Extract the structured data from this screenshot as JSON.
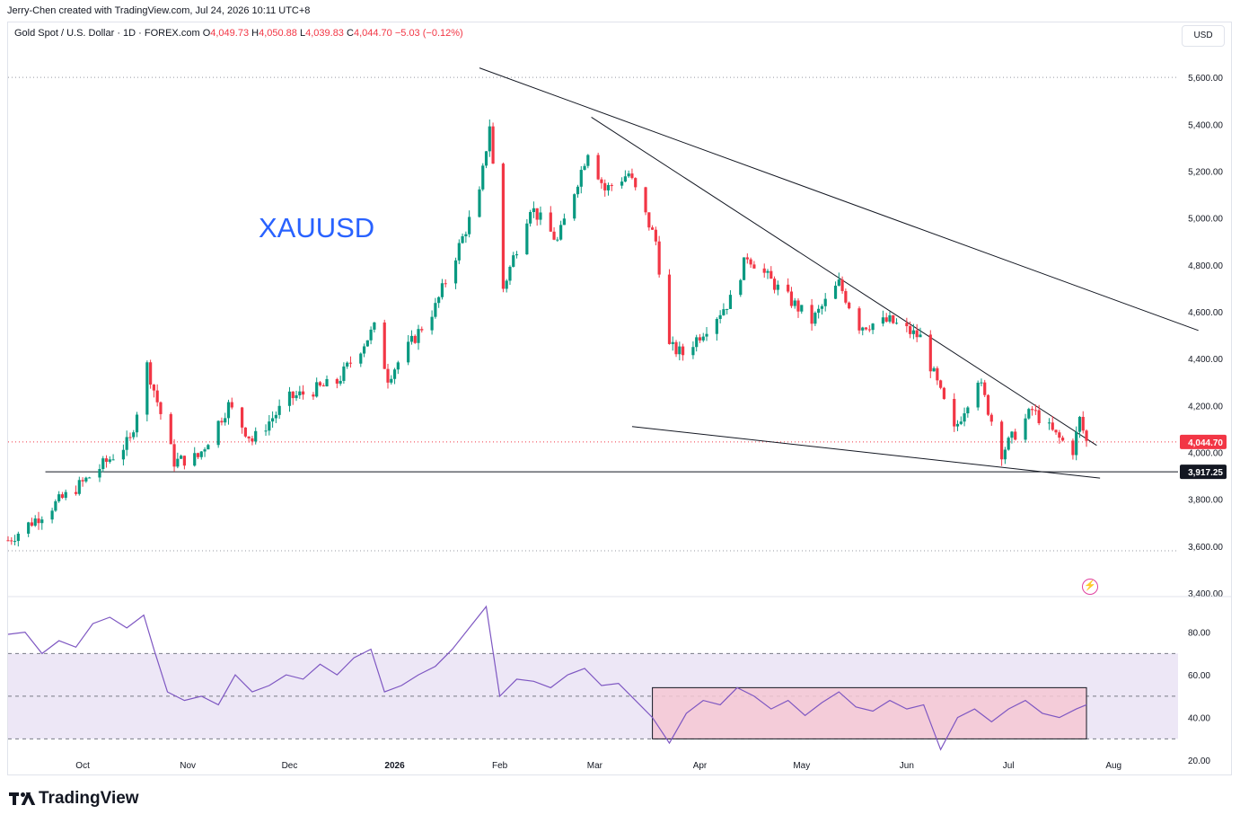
{
  "attribution": "Jerry-Chen created with TradingView.com, Jul 24, 2026 10:11 UTC+8",
  "legend": {
    "symbol": "Gold Spot / U.S. Dollar · 1D · FOREX.com",
    "open_label": "O",
    "open": "4,049.73",
    "high_label": "H",
    "high": "4,050.88",
    "low_label": "L",
    "low": "4,039.83",
    "close_label": "C",
    "close": "4,044.70",
    "change": "−5.03 (−0.12%)"
  },
  "currency": "USD",
  "annotation": "XAUUSD",
  "footer_brand": "TradingView",
  "colors": {
    "up": "#089981",
    "down": "#f23645",
    "rsi": "#7e57c2",
    "rsi_band": "#ede7f6",
    "highlight": "#f4c7d4",
    "trendline": "#131722",
    "price_label": "#f23645"
  },
  "chart_data": [
    {
      "type": "candlestick",
      "title": "Gold Spot / U.S. Dollar · 1D · FOREX.com",
      "price_axis": {
        "ylim": [
          3400,
          5700
        ],
        "ticks": [
          "5,600.00",
          "5,400.00",
          "5,200.00",
          "5,000.00",
          "4,800.00",
          "4,600.00",
          "4,400.00",
          "4,200.00",
          "4,000.00",
          "3,800.00",
          "3,600.00",
          "3,400.00"
        ],
        "tick_values": [
          5600,
          5400,
          5200,
          5000,
          4800,
          4600,
          4400,
          4200,
          4000,
          3800,
          3600,
          3400
        ]
      },
      "time_axis": {
        "labels": [
          "Oct",
          "Nov",
          "Dec",
          "2026",
          "Feb",
          "Mar",
          "Apr",
          "May",
          "Jun",
          "Jul",
          "Aug"
        ],
        "dates": [
          "2025-10-01",
          "2025-11-01",
          "2025-12-01",
          "2026-01-01",
          "2026-02-01",
          "2026-03-01",
          "2026-04-01",
          "2026-05-01",
          "2026-06-01",
          "2026-07-01",
          "2026-08-01"
        ],
        "xlim": [
          "2025-09-09",
          "2026-08-20"
        ]
      },
      "trend_segments": [
        {
          "date": "2025-09-09",
          "close": 3625
        },
        {
          "date": "2025-10-01",
          "close": 3870
        },
        {
          "date": "2025-10-15",
          "close": 4050
        },
        {
          "date": "2025-10-20",
          "close": 4370
        },
        {
          "date": "2025-10-28",
          "close": 3960
        },
        {
          "date": "2025-11-04",
          "close": 3980
        },
        {
          "date": "2025-11-13",
          "close": 4200
        },
        {
          "date": "2025-11-20",
          "close": 4050
        },
        {
          "date": "2025-12-01",
          "close": 4230
        },
        {
          "date": "2025-12-15",
          "close": 4300
        },
        {
          "date": "2025-12-26",
          "close": 4530
        },
        {
          "date": "2025-12-30",
          "close": 4320
        },
        {
          "date": "2026-01-13",
          "close": 4620
        },
        {
          "date": "2026-01-26",
          "close": 5100
        },
        {
          "date": "2026-01-29",
          "close": 5400
        },
        {
          "date": "2026-02-02",
          "close": 4700
        },
        {
          "date": "2026-02-10",
          "close": 5050
        },
        {
          "date": "2026-02-18",
          "close": 4900
        },
        {
          "date": "2026-02-27",
          "close": 5290
        },
        {
          "date": "2026-03-04",
          "close": 5120
        },
        {
          "date": "2026-03-11",
          "close": 5190
        },
        {
          "date": "2026-03-19",
          "close": 4900
        },
        {
          "date": "2026-03-23",
          "close": 4450
        },
        {
          "date": "2026-03-27",
          "close": 4420
        },
        {
          "date": "2026-04-10",
          "close": 4650
        },
        {
          "date": "2026-04-15",
          "close": 4840
        },
        {
          "date": "2026-04-24",
          "close": 4700
        },
        {
          "date": "2026-05-04",
          "close": 4560
        },
        {
          "date": "2026-05-12",
          "close": 4720
        },
        {
          "date": "2026-05-18",
          "close": 4540
        },
        {
          "date": "2026-05-27",
          "close": 4560
        },
        {
          "date": "2026-06-05",
          "close": 4490
        },
        {
          "date": "2026-06-11",
          "close": 4250
        },
        {
          "date": "2026-06-15",
          "close": 4090
        },
        {
          "date": "2026-06-22",
          "close": 4320
        },
        {
          "date": "2026-06-29",
          "close": 4000
        },
        {
          "date": "2026-07-08",
          "close": 4180
        },
        {
          "date": "2026-07-15",
          "close": 4070
        },
        {
          "date": "2026-07-20",
          "close": 4010
        },
        {
          "date": "2026-07-22",
          "close": 4140
        },
        {
          "date": "2026-07-24",
          "close": 4045
        }
      ],
      "trendlines": [
        {
          "from": {
            "date": "2026-01-26",
            "price": 5640
          },
          "to": {
            "date": "2026-08-26",
            "price": 4520
          }
        },
        {
          "from": {
            "date": "2026-02-28",
            "price": 5430
          },
          "to": {
            "date": "2026-07-27",
            "price": 4030
          }
        },
        {
          "from": {
            "date": "2026-03-12",
            "price": 4110
          },
          "to": {
            "date": "2026-07-28",
            "price": 3890
          }
        },
        {
          "from": {
            "date": "2025-09-20",
            "price": 3917.25
          },
          "to": {
            "date": "2026-08-20",
            "price": 3917.25
          }
        }
      ],
      "dotted_levels": [
        5600,
        4044.7,
        3580
      ],
      "price_labels": [
        {
          "value": "4,044.70",
          "price": 4044.7,
          "style": "last"
        },
        {
          "value": "3,917.25",
          "price": 3917.25,
          "style": "level"
        }
      ]
    },
    {
      "type": "line",
      "title": "",
      "ylim": [
        15,
        95
      ],
      "ticks": [
        "80.00",
        "60.00",
        "40.00",
        "20.00"
      ],
      "tick_values": [
        80,
        60,
        40,
        20
      ],
      "band": [
        30,
        70
      ],
      "midline": 50,
      "highlight_box": {
        "x_from": "2026-03-18",
        "x_to": "2026-07-24",
        "y_from": 30,
        "y_to": 54
      },
      "series": [
        {
          "values_by_date": [
            [
              "2025-09-09",
              79
            ],
            [
              "2025-09-14",
              80
            ],
            [
              "2025-09-19",
              70
            ],
            [
              "2025-09-24",
              76
            ],
            [
              "2025-09-29",
              73
            ],
            [
              "2025-10-04",
              84
            ],
            [
              "2025-10-09",
              87
            ],
            [
              "2025-10-14",
              82
            ],
            [
              "2025-10-19",
              88
            ],
            [
              "2025-10-22",
              72
            ],
            [
              "2025-10-26",
              52
            ],
            [
              "2025-10-31",
              48
            ],
            [
              "2025-11-05",
              50
            ],
            [
              "2025-11-10",
              46
            ],
            [
              "2025-11-15",
              60
            ],
            [
              "2025-11-20",
              52
            ],
            [
              "2025-11-25",
              55
            ],
            [
              "2025-11-30",
              60
            ],
            [
              "2025-12-05",
              58
            ],
            [
              "2025-12-10",
              65
            ],
            [
              "2025-12-15",
              60
            ],
            [
              "2025-12-20",
              68
            ],
            [
              "2025-12-25",
              72
            ],
            [
              "2025-12-29",
              52
            ],
            [
              "2026-01-03",
              55
            ],
            [
              "2026-01-08",
              60
            ],
            [
              "2026-01-13",
              64
            ],
            [
              "2026-01-18",
              72
            ],
            [
              "2026-01-23",
              82
            ],
            [
              "2026-01-28",
              92
            ],
            [
              "2026-02-01",
              50
            ],
            [
              "2026-02-06",
              58
            ],
            [
              "2026-02-11",
              57
            ],
            [
              "2026-02-16",
              54
            ],
            [
              "2026-02-21",
              60
            ],
            [
              "2026-02-26",
              63
            ],
            [
              "2026-03-03",
              55
            ],
            [
              "2026-03-08",
              56
            ],
            [
              "2026-03-13",
              48
            ],
            [
              "2026-03-18",
              40
            ],
            [
              "2026-03-23",
              28
            ],
            [
              "2026-03-28",
              42
            ],
            [
              "2026-04-02",
              48
            ],
            [
              "2026-04-07",
              46
            ],
            [
              "2026-04-12",
              54
            ],
            [
              "2026-04-17",
              50
            ],
            [
              "2026-04-22",
              44
            ],
            [
              "2026-04-27",
              48
            ],
            [
              "2026-05-02",
              41
            ],
            [
              "2026-05-07",
              47
            ],
            [
              "2026-05-12",
              52
            ],
            [
              "2026-05-17",
              45
            ],
            [
              "2026-05-22",
              43
            ],
            [
              "2026-05-27",
              48
            ],
            [
              "2026-06-01",
              44
            ],
            [
              "2026-06-06",
              46
            ],
            [
              "2026-06-11",
              25
            ],
            [
              "2026-06-16",
              40
            ],
            [
              "2026-06-21",
              44
            ],
            [
              "2026-06-26",
              38
            ],
            [
              "2026-07-01",
              44
            ],
            [
              "2026-07-06",
              48
            ],
            [
              "2026-07-11",
              42
            ],
            [
              "2026-07-16",
              40
            ],
            [
              "2026-07-21",
              44
            ],
            [
              "2026-07-24",
              46
            ]
          ]
        }
      ]
    }
  ]
}
